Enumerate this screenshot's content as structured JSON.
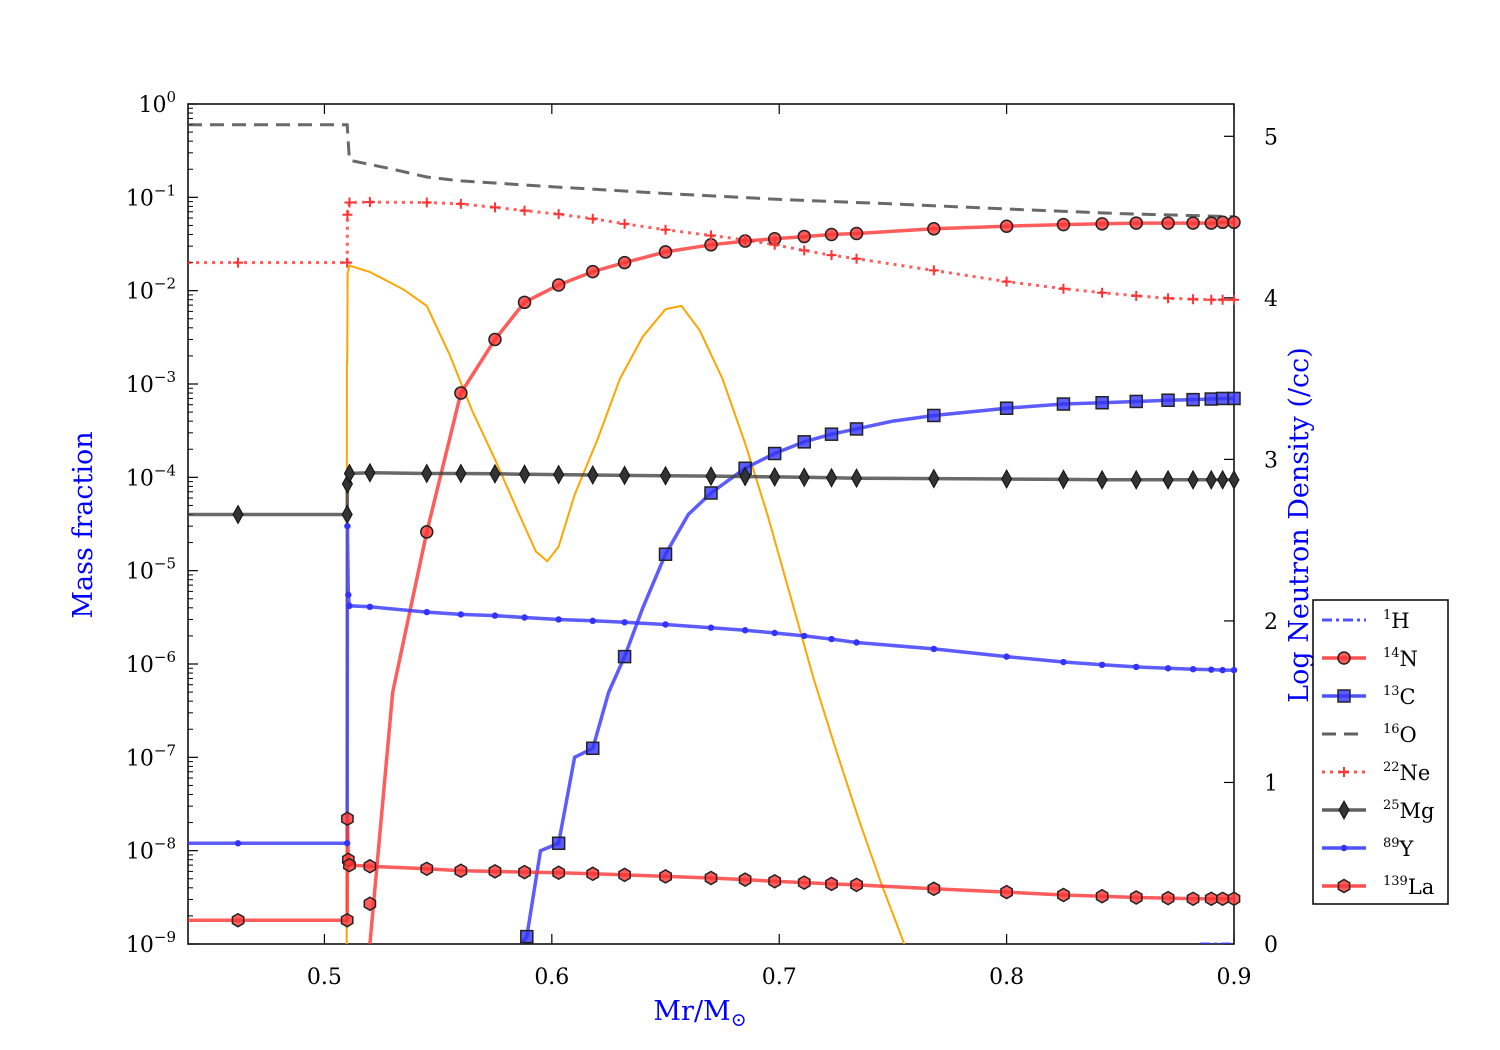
{
  "chart_data": {
    "type": "line",
    "xlabel": "Mr/M",
    "xlabel_symbol": "⊙",
    "ylabel_left": "Mass fraction",
    "ylabel_right": "Log Neutron Density (/cc)",
    "xlim": [
      0.44,
      0.9
    ],
    "ylim_left_log10": [
      -9,
      0
    ],
    "ylim_right": [
      0,
      5.2
    ],
    "yscale_left": "log",
    "grid": false,
    "legend_position": "right",
    "x_ticks": [
      "0.5",
      "0.6",
      "0.7",
      "0.8",
      "0.9"
    ],
    "x_tick_values": [
      0.5,
      0.6,
      0.7,
      0.8,
      0.9
    ],
    "y_left_tick_exponents": [
      "0",
      "−1",
      "−2",
      "−3",
      "−4",
      "−5",
      "−6",
      "−7",
      "−8",
      "−9"
    ],
    "y_left_tick_base": "10",
    "y_right_ticks": [
      "0",
      "1",
      "2",
      "3",
      "4",
      "5"
    ],
    "y_right_tick_values": [
      0,
      1,
      2,
      3,
      4,
      5
    ],
    "series": [
      {
        "name": "H",
        "mass": "1",
        "color": "#3333ff",
        "style": "dashdot",
        "marker": "none",
        "x": [
          0.885,
          0.9
        ],
        "y": [
          1e-09,
          1e-09
        ]
      },
      {
        "name": "N",
        "mass": "14",
        "color": "#ff3333",
        "style": "solid",
        "marker": "circle",
        "x": [
          0.52,
          0.53,
          0.545,
          0.56,
          0.575,
          0.588,
          0.603,
          0.618,
          0.632,
          0.65,
          0.67,
          0.685,
          0.698,
          0.711,
          0.723,
          0.734,
          0.768,
          0.8,
          0.825,
          0.842,
          0.857,
          0.871,
          0.882,
          0.89,
          0.895,
          0.9
        ],
        "y": [
          1e-09,
          5e-07,
          2.6e-05,
          0.0008,
          0.003,
          0.0075,
          0.0115,
          0.016,
          0.02,
          0.026,
          0.031,
          0.034,
          0.036,
          0.038,
          0.04,
          0.041,
          0.046,
          0.049,
          0.051,
          0.052,
          0.053,
          0.053,
          0.053,
          0.053,
          0.054,
          0.054
        ],
        "markers_x": [
          0.545,
          0.56,
          0.575,
          0.588,
          0.603,
          0.618,
          0.632,
          0.65,
          0.67,
          0.685,
          0.698,
          0.711,
          0.723,
          0.734,
          0.768,
          0.8,
          0.825,
          0.842,
          0.857,
          0.871,
          0.882,
          0.89,
          0.895,
          0.9
        ]
      },
      {
        "name": "C",
        "mass": "13",
        "color": "#3333ff",
        "style": "solid",
        "marker": "square",
        "x": [
          0.5865,
          0.589,
          0.595,
          0.603,
          0.61,
          0.618,
          0.625,
          0.632,
          0.64,
          0.65,
          0.66,
          0.67,
          0.685,
          0.698,
          0.711,
          0.723,
          0.734,
          0.75,
          0.768,
          0.8,
          0.825,
          0.842,
          0.857,
          0.871,
          0.882,
          0.89,
          0.895,
          0.9
        ],
        "y": [
          1e-09,
          1.2e-09,
          1e-08,
          1.2e-08,
          1e-07,
          1.25e-07,
          5e-07,
          1.2e-06,
          4e-06,
          1.5e-05,
          4e-05,
          6.8e-05,
          0.000125,
          0.00018,
          0.00024,
          0.00029,
          0.00033,
          0.0004,
          0.00046,
          0.00055,
          0.00061,
          0.00063,
          0.00065,
          0.00067,
          0.00068,
          0.00069,
          0.0007,
          0.0007
        ],
        "markers_x": [
          0.589,
          0.603,
          0.618,
          0.632,
          0.65,
          0.67,
          0.685,
          0.698,
          0.711,
          0.723,
          0.734,
          0.768,
          0.8,
          0.825,
          0.842,
          0.857,
          0.871,
          0.882,
          0.89,
          0.895,
          0.9
        ]
      },
      {
        "name": "O",
        "mass": "16",
        "color": "#444444",
        "style": "dashed",
        "marker": "none",
        "x": [
          0.44,
          0.51,
          0.5101,
          0.511,
          0.53,
          0.545,
          0.56,
          0.6,
          0.65,
          0.7,
          0.75,
          0.8,
          0.85,
          0.9
        ],
        "y": [
          0.6,
          0.6,
          0.55,
          0.25,
          0.2,
          0.165,
          0.15,
          0.13,
          0.11,
          0.095,
          0.085,
          0.075,
          0.067,
          0.062
        ]
      },
      {
        "name": "Ne",
        "mass": "22",
        "color": "#ff3333",
        "style": "dotted",
        "marker": "plus",
        "x": [
          0.44,
          0.462,
          0.51,
          0.5101,
          0.511,
          0.52,
          0.545,
          0.56,
          0.575,
          0.588,
          0.603,
          0.618,
          0.632,
          0.65,
          0.67,
          0.685,
          0.698,
          0.711,
          0.723,
          0.734,
          0.768,
          0.8,
          0.825,
          0.842,
          0.857,
          0.871,
          0.882,
          0.89,
          0.895,
          0.9
        ],
        "y": [
          0.02,
          0.02,
          0.02,
          0.065,
          0.088,
          0.089,
          0.088,
          0.085,
          0.078,
          0.072,
          0.066,
          0.059,
          0.052,
          0.045,
          0.039,
          0.035,
          0.031,
          0.027,
          0.024,
          0.022,
          0.0165,
          0.0125,
          0.0105,
          0.0095,
          0.0088,
          0.0083,
          0.0081,
          0.008,
          0.008,
          0.008
        ],
        "markers_x": [
          0.462,
          0.51,
          0.5101,
          0.511,
          0.52,
          0.545,
          0.56,
          0.575,
          0.588,
          0.603,
          0.618,
          0.632,
          0.65,
          0.67,
          0.685,
          0.698,
          0.711,
          0.723,
          0.734,
          0.768,
          0.8,
          0.825,
          0.842,
          0.857,
          0.871,
          0.882,
          0.89,
          0.895,
          0.9
        ]
      },
      {
        "name": "Mg",
        "mass": "25",
        "color": "#444444",
        "style": "solid",
        "marker": "diamond",
        "x": [
          0.44,
          0.462,
          0.51,
          0.5101,
          0.511,
          0.52,
          0.545,
          0.56,
          0.575,
          0.588,
          0.603,
          0.618,
          0.632,
          0.65,
          0.67,
          0.685,
          0.698,
          0.711,
          0.723,
          0.734,
          0.768,
          0.8,
          0.825,
          0.842,
          0.857,
          0.871,
          0.882,
          0.89,
          0.895,
          0.9
        ],
        "y": [
          4e-05,
          4e-05,
          4e-05,
          8.5e-05,
          0.00011,
          0.000112,
          0.00011,
          0.00011,
          0.000109,
          0.000108,
          0.000107,
          0.000106,
          0.000105,
          0.000104,
          0.000103,
          0.000102,
          0.000101,
          0.0001,
          9.9e-05,
          9.8e-05,
          9.7e-05,
          9.6e-05,
          9.5e-05,
          9.4e-05,
          9.4e-05,
          9.4e-05,
          9.4e-05,
          9.4e-05,
          9.4e-05,
          9.4e-05
        ],
        "markers_x": [
          0.462,
          0.51,
          0.5101,
          0.511,
          0.52,
          0.545,
          0.56,
          0.575,
          0.588,
          0.603,
          0.618,
          0.632,
          0.65,
          0.67,
          0.685,
          0.698,
          0.711,
          0.723,
          0.734,
          0.768,
          0.8,
          0.825,
          0.842,
          0.857,
          0.871,
          0.882,
          0.89,
          0.895,
          0.9
        ]
      },
      {
        "name": "Y",
        "mass": "89",
        "color": "#3333ff",
        "style": "solid",
        "marker": "dot",
        "x": [
          0.44,
          0.462,
          0.51,
          0.5101,
          0.5105,
          0.511,
          0.52,
          0.545,
          0.56,
          0.575,
          0.588,
          0.603,
          0.618,
          0.632,
          0.65,
          0.67,
          0.685,
          0.698,
          0.711,
          0.723,
          0.734,
          0.768,
          0.8,
          0.825,
          0.842,
          0.857,
          0.871,
          0.882,
          0.89,
          0.895,
          0.9
        ],
        "y": [
          1.2e-08,
          1.2e-08,
          1.2e-08,
          3e-05,
          5.5e-06,
          4.2e-06,
          4.1e-06,
          3.6e-06,
          3.4e-06,
          3.3e-06,
          3.15e-06,
          3e-06,
          2.9e-06,
          2.8e-06,
          2.65e-06,
          2.45e-06,
          2.3e-06,
          2.15e-06,
          2e-06,
          1.85e-06,
          1.7e-06,
          1.45e-06,
          1.2e-06,
          1.05e-06,
          9.8e-07,
          9.3e-07,
          9e-07,
          8.8e-07,
          8.7e-07,
          8.6e-07,
          8.6e-07
        ],
        "markers_x": [
          0.462,
          0.51,
          0.5101,
          0.5105,
          0.511,
          0.52,
          0.545,
          0.56,
          0.575,
          0.588,
          0.603,
          0.618,
          0.632,
          0.65,
          0.67,
          0.685,
          0.698,
          0.711,
          0.723,
          0.734,
          0.768,
          0.8,
          0.825,
          0.842,
          0.857,
          0.871,
          0.882,
          0.89,
          0.895,
          0.9
        ]
      },
      {
        "name": "La",
        "mass": "139",
        "color": "#ff3333",
        "style": "solid",
        "marker": "hexagon",
        "x": [
          0.44,
          0.462,
          0.51,
          0.5101,
          0.5105,
          0.511,
          0.52,
          0.545,
          0.56,
          0.575,
          0.588,
          0.603,
          0.618,
          0.632,
          0.65,
          0.67,
          0.685,
          0.698,
          0.711,
          0.723,
          0.734,
          0.768,
          0.8,
          0.825,
          0.842,
          0.857,
          0.871,
          0.882,
          0.89,
          0.895,
          0.9
        ],
        "y": [
          1.8e-09,
          1.8e-09,
          1.8e-09,
          2.2e-08,
          8e-09,
          7e-09,
          6.8e-09,
          6.4e-09,
          6.1e-09,
          6e-09,
          5.9e-09,
          5.8e-09,
          5.65e-09,
          5.5e-09,
          5.3e-09,
          5.1e-09,
          4.9e-09,
          4.7e-09,
          4.55e-09,
          4.4e-09,
          4.3e-09,
          3.9e-09,
          3.6e-09,
          3.35e-09,
          3.25e-09,
          3.15e-09,
          3.1e-09,
          3.05e-09,
          3.05e-09,
          3.05e-09,
          3.05e-09
        ],
        "markers_x": [
          0.462,
          0.51,
          0.5101,
          0.5105,
          0.511,
          0.52,
          0.545,
          0.56,
          0.575,
          0.588,
          0.603,
          0.618,
          0.632,
          0.65,
          0.67,
          0.685,
          0.698,
          0.711,
          0.723,
          0.734,
          0.768,
          0.8,
          0.825,
          0.842,
          0.857,
          0.871,
          0.882,
          0.89,
          0.895,
          0.9
        ]
      }
    ],
    "extra_markers": [
      {
        "series": "La",
        "x": 0.52,
        "y": 2.7e-09
      }
    ],
    "neutron_density": {
      "axis": "right",
      "color": "#ffa500",
      "x": [
        0.5098,
        0.5099,
        0.51,
        0.5102,
        0.511,
        0.52,
        0.535,
        0.545,
        0.555,
        0.565,
        0.575,
        0.585,
        0.593,
        0.598,
        0.603,
        0.61,
        0.62,
        0.63,
        0.64,
        0.65,
        0.657,
        0.665,
        0.675,
        0.685,
        0.695,
        0.705,
        0.715,
        0.725,
        0.735,
        0.745,
        0.755
      ],
      "y": [
        0.0,
        3.6,
        3.6,
        4.15,
        4.2,
        4.16,
        4.05,
        3.95,
        3.65,
        3.3,
        3.0,
        2.68,
        2.43,
        2.37,
        2.46,
        2.78,
        3.12,
        3.5,
        3.76,
        3.93,
        3.95,
        3.8,
        3.5,
        3.1,
        2.65,
        2.15,
        1.65,
        1.2,
        0.77,
        0.37,
        0.0
      ]
    }
  }
}
